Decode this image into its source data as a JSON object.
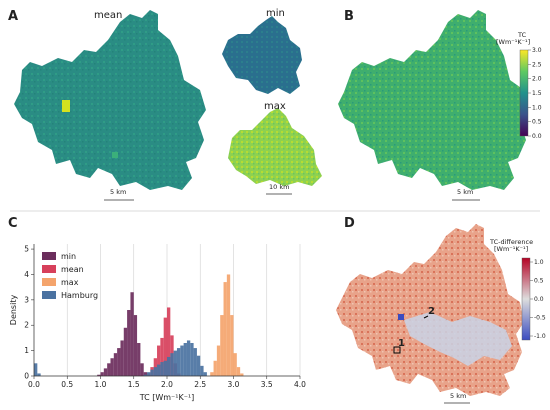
{
  "panel_letters": {
    "a": "A",
    "b": "B",
    "c": "C",
    "d": "D"
  },
  "panel_a": {
    "mean_label": "mean",
    "min_label": "min",
    "max_label": "max",
    "scalebar_main": "5 km",
    "scalebar_max": "10 km"
  },
  "panel_b": {
    "colorbar_title_line1": "TC",
    "colorbar_title_line2": "[Wm⁻¹K⁻¹]",
    "colorbar_ticks": [
      "3.0",
      "2.5",
      "2.0",
      "1.5",
      "1.0",
      "0.5",
      "0.0"
    ],
    "scalebar": "5 km",
    "colormap": [
      "#440154",
      "#3b528b",
      "#21918c",
      "#5ec962",
      "#fde725"
    ]
  },
  "panel_d": {
    "colorbar_title_line1": "TC-difference",
    "colorbar_title_line2": "[Wm⁻¹K⁻¹]",
    "colorbar_ticks": [
      "1.0",
      "0.5",
      "0.0",
      "-0.5",
      "-1.0"
    ],
    "marker_1": "1",
    "marker_2": "2",
    "scalebar": "5 km",
    "colormap": [
      "#3b4cc0",
      "#dddddd",
      "#b40426"
    ]
  },
  "chart_data": {
    "type": "histogram",
    "xlabel": "TC [Wm⁻¹K⁻¹]",
    "ylabel": "Density",
    "xlim": [
      0.0,
      4.0
    ],
    "ylim": [
      0,
      5.2
    ],
    "xticks": [
      "0.0",
      "0.5",
      "1.0",
      "1.5",
      "2.0",
      "2.5",
      "3.0",
      "3.5",
      "4.0"
    ],
    "yticks": [
      "0",
      "1",
      "2",
      "3",
      "4",
      "5"
    ],
    "grid": true,
    "legend_position": "top-left",
    "series": [
      {
        "name": "min",
        "color": "#6b2d5c",
        "bins": [
          [
            0.95,
            0.05
          ],
          [
            1.0,
            0.15
          ],
          [
            1.05,
            0.3
          ],
          [
            1.1,
            0.5
          ],
          [
            1.15,
            0.7
          ],
          [
            1.2,
            0.9
          ],
          [
            1.25,
            1.1
          ],
          [
            1.3,
            1.4
          ],
          [
            1.35,
            1.9
          ],
          [
            1.4,
            2.6
          ],
          [
            1.45,
            3.3
          ],
          [
            1.5,
            2.4
          ],
          [
            1.55,
            1.3
          ],
          [
            1.6,
            0.5
          ],
          [
            1.65,
            0.15
          ]
        ]
      },
      {
        "name": "mean",
        "color": "#d7405b",
        "bins": [
          [
            1.7,
            0.1
          ],
          [
            1.75,
            0.35
          ],
          [
            1.8,
            0.7
          ],
          [
            1.85,
            1.2
          ],
          [
            1.9,
            1.5
          ],
          [
            1.95,
            2.3
          ],
          [
            2.0,
            2.7
          ],
          [
            2.05,
            1.6
          ],
          [
            2.1,
            0.5
          ],
          [
            2.15,
            0.1
          ]
        ]
      },
      {
        "name": "max",
        "color": "#f4a46c",
        "bins": [
          [
            2.65,
            0.15
          ],
          [
            2.7,
            0.6
          ],
          [
            2.75,
            1.2
          ],
          [
            2.8,
            2.4
          ],
          [
            2.85,
            3.7
          ],
          [
            2.9,
            4.0
          ],
          [
            2.95,
            2.4
          ],
          [
            3.0,
            0.9
          ],
          [
            3.05,
            0.35
          ],
          [
            3.1,
            0.1
          ]
        ]
      },
      {
        "name": "Hamburg",
        "color": "#4a72a1",
        "bins": [
          [
            0.0,
            0.5
          ],
          [
            0.05,
            0.1
          ],
          [
            1.65,
            0.05
          ],
          [
            1.7,
            0.15
          ],
          [
            1.75,
            0.25
          ],
          [
            1.8,
            0.35
          ],
          [
            1.85,
            0.45
          ],
          [
            1.9,
            0.55
          ],
          [
            1.95,
            0.6
          ],
          [
            2.0,
            0.75
          ],
          [
            2.05,
            0.9
          ],
          [
            2.1,
            1.0
          ],
          [
            2.15,
            1.1
          ],
          [
            2.2,
            1.2
          ],
          [
            2.25,
            1.3
          ],
          [
            2.3,
            1.4
          ],
          [
            2.35,
            1.3
          ],
          [
            2.4,
            1.1
          ],
          [
            2.45,
            0.8
          ],
          [
            2.5,
            0.4
          ],
          [
            2.55,
            0.15
          ]
        ]
      }
    ]
  }
}
